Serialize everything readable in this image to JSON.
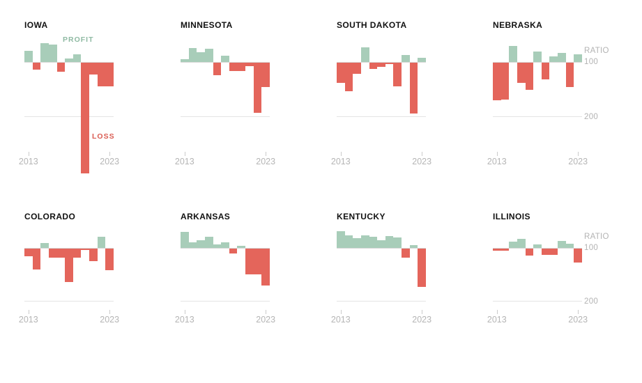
{
  "page": {
    "background": "#ffffff"
  },
  "colors": {
    "profit_green": "#a8cdb9",
    "loss_red": "#e4655b",
    "neutral_bar": "#c6c6c6",
    "profit_label_color": "#8fbaa3",
    "loss_label_color": "#da5c52",
    "title_color": "#121212",
    "axis_text_color": "#b5b5b5",
    "gridline_color": "#e4e4e4"
  },
  "axis": {
    "start_label": "2013",
    "end_label": "2023",
    "ratio_label": "RATIO",
    "hundred_label": "100",
    "two_hundred_label": "200",
    "profit_label": "PROFIT",
    "loss_label": "LOSS"
  },
  "chart_data": [
    {
      "type": "bar",
      "title": "IOWA",
      "categories": [
        2013,
        2014,
        2015,
        2016,
        2017,
        2018,
        2019,
        2020,
        2021,
        2022,
        2023
      ],
      "values": [
        79,
        113,
        65,
        68,
        117,
        94,
        86,
        304,
        122,
        144,
        144
      ],
      "baseline": 100,
      "ylabel": "RATIO",
      "yticks": [
        100,
        200
      ],
      "xlabel": "",
      "legend": {
        "above_baseline": "PROFIT",
        "below_baseline": "LOSS"
      },
      "show_profit_loss_labels": true,
      "show_ratio_scale": false
    },
    {
      "type": "bar",
      "title": "MINNESOTA",
      "categories": [
        2013,
        2014,
        2015,
        2016,
        2017,
        2018,
        2019,
        2020,
        2021,
        2022,
        2023
      ],
      "values": [
        95,
        74,
        82,
        76,
        123,
        88,
        115,
        115,
        106,
        192,
        145
      ],
      "baseline": 100,
      "ylabel": "RATIO",
      "yticks": [
        100,
        200
      ],
      "xlabel": "",
      "show_profit_loss_labels": false,
      "show_ratio_scale": false
    },
    {
      "type": "bar",
      "title": "SOUTH DAKOTA",
      "categories": [
        2013,
        2014,
        2015,
        2016,
        2017,
        2018,
        2019,
        2020,
        2021,
        2022,
        2023
      ],
      "values": [
        137,
        153,
        121,
        73,
        112,
        108,
        102,
        144,
        87,
        194,
        92
      ],
      "baseline": 100,
      "ylabel": "RATIO",
      "yticks": [
        100,
        200
      ],
      "xlabel": "",
      "show_profit_loss_labels": false,
      "show_ratio_scale": false
    },
    {
      "type": "bar",
      "title": "NEBRASKA",
      "categories": [
        2013,
        2014,
        2015,
        2016,
        2017,
        2018,
        2019,
        2020,
        2021,
        2022,
        2023
      ],
      "values": [
        169,
        168,
        71,
        137,
        150,
        81,
        131,
        90,
        83,
        145,
        86
      ],
      "baseline": 100,
      "ylabel": "RATIO",
      "yticks": [
        100,
        200
      ],
      "xlabel": "",
      "show_profit_loss_labels": false,
      "show_ratio_scale": true
    },
    {
      "type": "bar",
      "title": "COLORADO",
      "categories": [
        2013,
        2014,
        2015,
        2016,
        2017,
        2018,
        2019,
        2020,
        2021,
        2022,
        2023
      ],
      "values": [
        114,
        138,
        91,
        116,
        116,
        161,
        116,
        102,
        123,
        79,
        140
      ],
      "baseline": 100,
      "ylabel": "RATIO",
      "yticks": [
        100,
        200
      ],
      "xlabel": "",
      "show_profit_loss_labels": false,
      "show_ratio_scale": false
    },
    {
      "type": "bar",
      "title": "ARKANSAS",
      "categories": [
        2013,
        2014,
        2015,
        2016,
        2017,
        2018,
        2019,
        2020,
        2021,
        2022,
        2023
      ],
      "values": [
        71,
        90,
        86,
        79,
        94,
        90,
        109,
        96,
        148,
        148,
        168
      ],
      "baseline": 100,
      "ylabel": "RATIO",
      "yticks": [
        100,
        200
      ],
      "xlabel": "",
      "show_profit_loss_labels": false,
      "show_ratio_scale": false
    },
    {
      "type": "bar",
      "title": "KENTUCKY",
      "categories": [
        2013,
        2014,
        2015,
        2016,
        2017,
        2018,
        2019,
        2020,
        2021,
        2022,
        2023
      ],
      "values": [
        69,
        77,
        82,
        77,
        79,
        86,
        78,
        81,
        116,
        95,
        170
      ],
      "baseline": 100,
      "ylabel": "RATIO",
      "yticks": [
        100,
        200
      ],
      "xlabel": "",
      "show_profit_loss_labels": false,
      "show_ratio_scale": false
    },
    {
      "type": "bar",
      "title": "ILLINOIS",
      "categories": [
        2013,
        2014,
        2015,
        2016,
        2017,
        2018,
        2019,
        2020,
        2021,
        2022,
        2023
      ],
      "values": [
        104,
        104,
        88,
        83,
        113,
        94,
        112,
        112,
        87,
        92,
        126
      ],
      "baseline": 100,
      "ylabel": "RATIO",
      "yticks": [
        100,
        200
      ],
      "xlabel": "",
      "show_profit_loss_labels": false,
      "show_ratio_scale": true
    }
  ]
}
